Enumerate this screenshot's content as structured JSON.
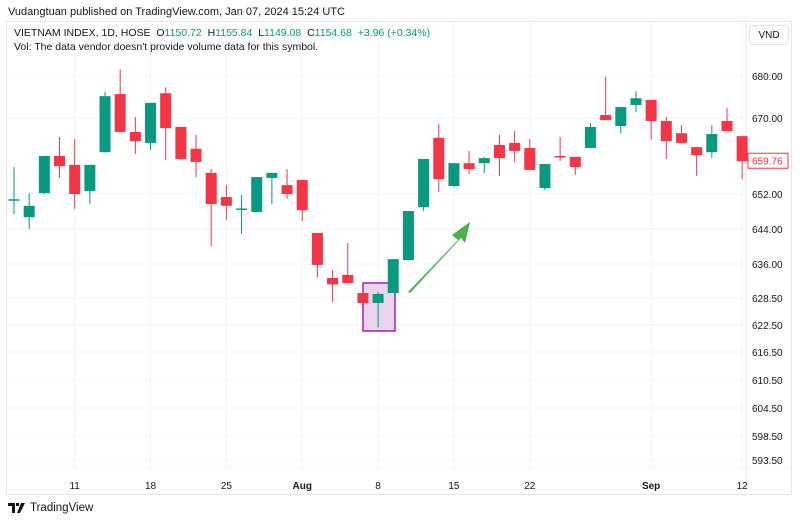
{
  "header": {
    "published": "Vudangtuan published on TradingView.com, Jan 07, 2024 15:24 UTC"
  },
  "legend": {
    "symbol": "VIETNAM INDEX, 1D, HOSE",
    "o_label": "O",
    "o": "1150.72",
    "h_label": "H",
    "h": "1155.84",
    "l_label": "L",
    "l": "1149.08",
    "c_label": "C",
    "c": "1154.68",
    "change": "+3.96 (+0.34%)",
    "volume_note": "Vol: The data vendor doesn't provide volume data for this symbol."
  },
  "currency_button": "VND",
  "footer": {
    "brand": "TradingView"
  },
  "colors": {
    "up": "#089981",
    "down": "#f23645",
    "highlight_border": "#9c27b0",
    "highlight_fill": "#e8d4ee",
    "arrow": "#4caf50"
  },
  "chart_data": {
    "type": "candlestick",
    "title": "VIETNAM INDEX, 1D, HOSE",
    "last_price_label": "659.76",
    "y_ticks": [
      680.0,
      670.0,
      652.0,
      644.0,
      636.0,
      628.5,
      622.5,
      616.5,
      610.5,
      604.5,
      598.5,
      593.5
    ],
    "y_tick_labels": [
      "680.00",
      "670.00",
      "652.00",
      "644.00",
      "636.00",
      "628.50",
      "622.50",
      "616.50",
      "610.50",
      "604.50",
      "598.50",
      "593.50"
    ],
    "x_labels": [
      {
        "label": "11",
        "index": 4
      },
      {
        "label": "18",
        "index": 9
      },
      {
        "label": "25",
        "index": 14
      },
      {
        "label": "Aug",
        "index": 19
      },
      {
        "label": "8",
        "index": 24
      },
      {
        "label": "15",
        "index": 29
      },
      {
        "label": "22",
        "index": 34
      },
      {
        "label": "Sep",
        "index": 42
      },
      {
        "label": "12",
        "index": 48
      }
    ],
    "candles": [
      [
        650.5,
        658.4,
        647.4,
        650.8
      ],
      [
        646.7,
        652.2,
        644.0,
        649.3
      ],
      [
        652.2,
        661.0,
        652.0,
        661.0
      ],
      [
        661.0,
        665.5,
        655.8,
        658.6
      ],
      [
        658.9,
        665.0,
        648.6,
        652.0
      ],
      [
        652.7,
        658.9,
        649.7,
        658.9
      ],
      [
        661.9,
        676.2,
        661.9,
        675.2
      ],
      [
        675.7,
        681.6,
        666.7,
        666.7
      ],
      [
        666.7,
        670.2,
        661.5,
        664.5
      ],
      [
        664.1,
        673.6,
        662.4,
        673.6
      ],
      [
        675.9,
        677.3,
        660.0,
        667.6
      ],
      [
        667.9,
        667.9,
        660.3,
        660.3
      ],
      [
        662.7,
        666.0,
        656.0,
        659.6
      ],
      [
        657.0,
        657.9,
        640.1,
        649.7
      ],
      [
        651.3,
        654.1,
        646.1,
        649.3
      ],
      [
        648.6,
        651.8,
        642.9,
        648.7
      ],
      [
        647.9,
        656.0,
        647.9,
        656.0
      ],
      [
        655.8,
        657.0,
        649.7,
        657.0
      ],
      [
        654.1,
        657.9,
        650.9,
        652.0
      ],
      [
        655.3,
        655.3,
        645.8,
        648.3
      ],
      [
        643.1,
        643.1,
        633.1,
        635.8
      ],
      [
        632.9,
        634.7,
        627.6,
        631.5
      ],
      [
        633.6,
        640.8,
        631.8,
        631.8
      ],
      [
        629.6,
        629.6,
        627.4,
        627.4
      ],
      [
        627.4,
        629.8,
        622.0,
        629.4
      ],
      [
        629.6,
        637.1,
        629.6,
        637.1
      ],
      [
        636.9,
        648.1,
        636.9,
        648.1
      ],
      [
        649.0,
        660.3,
        648.1,
        660.3
      ],
      [
        665.3,
        668.6,
        652.5,
        655.5
      ],
      [
        653.9,
        659.3,
        653.6,
        659.3
      ],
      [
        659.3,
        662.2,
        656.7,
        657.9
      ],
      [
        659.3,
        660.8,
        657.0,
        660.5
      ],
      [
        663.6,
        666.0,
        656.3,
        660.5
      ],
      [
        664.1,
        666.9,
        659.6,
        662.2
      ],
      [
        662.9,
        665.0,
        657.7,
        657.7
      ],
      [
        653.4,
        659.1,
        652.9,
        659.1
      ],
      [
        661.0,
        665.5,
        659.8,
        660.9
      ],
      [
        660.8,
        660.8,
        656.5,
        658.4
      ],
      [
        662.9,
        668.8,
        662.9,
        667.9
      ],
      [
        670.7,
        679.8,
        669.5,
        669.5
      ],
      [
        668.1,
        672.6,
        666.4,
        672.6
      ],
      [
        673.1,
        676.4,
        671.4,
        674.7
      ],
      [
        674.3,
        674.3,
        664.8,
        669.3
      ],
      [
        669.3,
        670.2,
        660.3,
        664.5
      ],
      [
        666.4,
        668.3,
        664.1,
        664.1
      ],
      [
        663.1,
        663.1,
        656.3,
        661.2
      ],
      [
        661.9,
        668.3,
        660.5,
        666.2
      ],
      [
        669.3,
        672.4,
        666.9,
        666.9
      ],
      [
        665.7,
        665.7,
        655.5,
        659.76
      ]
    ],
    "candle_format": [
      "open",
      "high",
      "low",
      "close"
    ],
    "annotations": [
      {
        "type": "rectangle",
        "around_index": [
          23,
          24
        ]
      },
      {
        "type": "arrow",
        "direction": "up-right"
      }
    ],
    "grid": true
  }
}
